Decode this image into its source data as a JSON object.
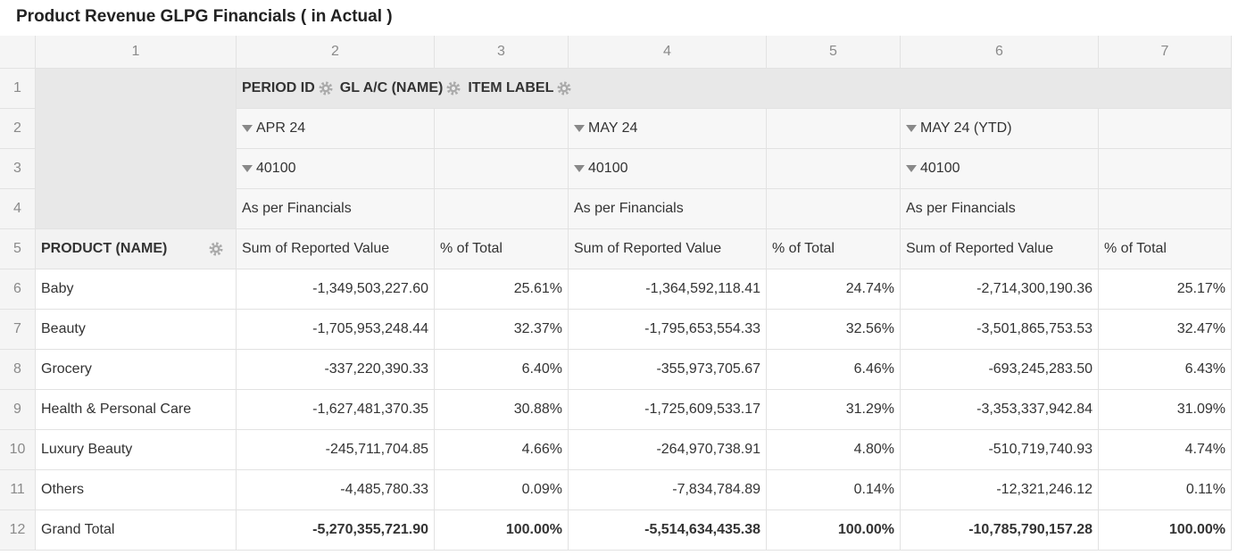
{
  "title": "Product Revenue GLPG Financials ( in Actual )",
  "column_numbers": [
    "1",
    "2",
    "3",
    "4",
    "5",
    "6",
    "7"
  ],
  "row_numbers": [
    "1",
    "2",
    "3",
    "4",
    "5",
    "6",
    "7",
    "8",
    "9",
    "10",
    "11",
    "12"
  ],
  "column_fields": [
    "PERIOD ID",
    "GL A/C (NAME)",
    "ITEM LABEL"
  ],
  "row_field": "PRODUCT (NAME)",
  "periods": [
    {
      "period": "APR 24",
      "account": "40100",
      "item": "As per Financials",
      "measures": [
        "Sum of Reported Value",
        "% of Total"
      ]
    },
    {
      "period": "MAY 24",
      "account": "40100",
      "item": "As per Financials",
      "measures": [
        "Sum of Reported Value",
        "% of Total"
      ]
    },
    {
      "period": "MAY 24 (YTD)",
      "account": "40100",
      "item": "As per Financials",
      "measures": [
        "Sum of Reported Value",
        "% of Total"
      ]
    }
  ],
  "rows": [
    {
      "name": "Baby",
      "cells": [
        "-1,349,503,227.60",
        "25.61%",
        "-1,364,592,118.41",
        "24.74%",
        "-2,714,300,190.36",
        "25.17%"
      ]
    },
    {
      "name": "Beauty",
      "cells": [
        "-1,705,953,248.44",
        "32.37%",
        "-1,795,653,554.33",
        "32.56%",
        "-3,501,865,753.53",
        "32.47%"
      ]
    },
    {
      "name": "Grocery",
      "cells": [
        "-337,220,390.33",
        "6.40%",
        "-355,973,705.67",
        "6.46%",
        "-693,245,283.50",
        "6.43%"
      ]
    },
    {
      "name": "Health & Personal Care",
      "cells": [
        "-1,627,481,370.35",
        "30.88%",
        "-1,725,609,533.17",
        "31.29%",
        "-3,353,337,942.84",
        "31.09%"
      ]
    },
    {
      "name": "Luxury Beauty",
      "cells": [
        "-245,711,704.85",
        "4.66%",
        "-264,970,738.91",
        "4.80%",
        "-510,719,740.93",
        "4.74%"
      ]
    },
    {
      "name": "Others",
      "cells": [
        "-4,485,780.33",
        "0.09%",
        "-7,834,784.89",
        "0.14%",
        "-12,321,246.12",
        "0.11%"
      ]
    },
    {
      "name": "Grand Total",
      "cells": [
        "-5,270,355,721.90",
        "100.00%",
        "-5,514,634,435.38",
        "100.00%",
        "-10,785,790,157.28",
        "100.00%"
      ]
    }
  ]
}
